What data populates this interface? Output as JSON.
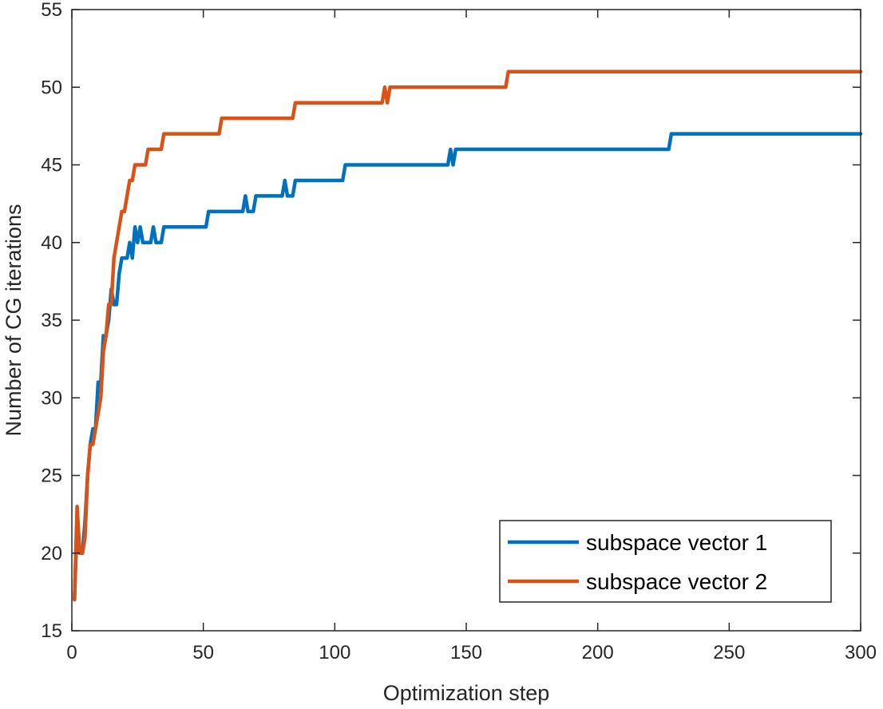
{
  "chart_data": {
    "type": "line",
    "title": "",
    "xlabel": "Optimization step",
    "ylabel": "Number of CG iterations",
    "xlim": [
      0,
      300
    ],
    "ylim": [
      15,
      55
    ],
    "xticks": [
      0,
      50,
      100,
      150,
      200,
      250,
      300
    ],
    "yticks": [
      15,
      20,
      25,
      30,
      35,
      40,
      45,
      50,
      55
    ],
    "grid": false,
    "legend_position": "bottom-right",
    "series": [
      {
        "name": "subspace vector 1",
        "color": "#0072BD",
        "x": [
          1,
          2,
          3,
          4,
          5,
          6,
          7,
          8,
          9,
          10,
          11,
          12,
          13,
          14,
          15,
          16,
          17,
          18,
          19,
          20,
          21,
          22,
          23,
          24,
          25,
          26,
          27,
          28,
          29,
          30,
          31,
          32,
          33,
          34,
          35,
          51,
          52,
          65,
          66,
          67,
          68,
          69,
          70,
          79,
          80,
          81,
          82,
          84,
          85,
          103,
          104,
          142,
          143,
          144,
          145,
          146,
          227,
          228,
          300
        ],
        "y": [
          17,
          22,
          20,
          20,
          22,
          25,
          27,
          28,
          28,
          31,
          31,
          34,
          34,
          35,
          37,
          36,
          36,
          38,
          39,
          39,
          39,
          40,
          39,
          41,
          40,
          41,
          40,
          40,
          40,
          40,
          41,
          40,
          40,
          40,
          41,
          41,
          42,
          42,
          43,
          42,
          42,
          42,
          43,
          43,
          43,
          44,
          43,
          43,
          44,
          44,
          45,
          45,
          45,
          46,
          45,
          46,
          46,
          47,
          47
        ]
      },
      {
        "name": "subspace vector 2",
        "color": "#D95319",
        "x": [
          1,
          2,
          3,
          4,
          5,
          6,
          7,
          8,
          9,
          10,
          11,
          12,
          13,
          14,
          15,
          16,
          17,
          18,
          19,
          20,
          21,
          22,
          23,
          24,
          25,
          26,
          27,
          28,
          29,
          30,
          31,
          32,
          33,
          34,
          35,
          36,
          56,
          57,
          84,
          85,
          86,
          118,
          119,
          120,
          121,
          165,
          166,
          300
        ],
        "y": [
          17,
          23,
          20,
          20,
          21,
          25,
          27,
          27,
          28,
          29,
          30,
          33,
          34,
          36,
          36,
          39,
          40,
          41,
          42,
          42,
          43,
          44,
          44,
          45,
          45,
          45,
          45,
          45,
          46,
          46,
          46,
          46,
          46,
          46,
          47,
          47,
          47,
          48,
          48,
          49,
          49,
          49,
          50,
          49,
          50,
          50,
          51,
          51
        ]
      }
    ]
  }
}
